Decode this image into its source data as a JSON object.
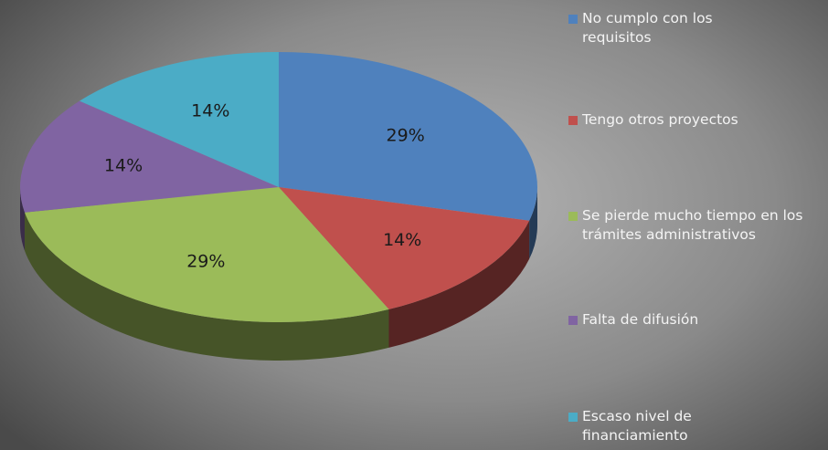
{
  "chart_data": {
    "type": "pie",
    "categories": [
      "No cumplo con los requisitos",
      "Tengo otros proyectos",
      "Se pierde mucho tiempo en los trámites administrativos",
      "Falta de difusión",
      "Escaso nivel de financiamiento"
    ],
    "values": [
      29,
      14,
      29,
      14,
      14
    ],
    "value_labels": [
      "29%",
      "14%",
      "29%",
      "14%",
      "14%"
    ],
    "colors": [
      "#4f81bd",
      "#c0504d",
      "#9bbb59",
      "#8064a2",
      "#4bacc6"
    ],
    "legend": "right"
  }
}
